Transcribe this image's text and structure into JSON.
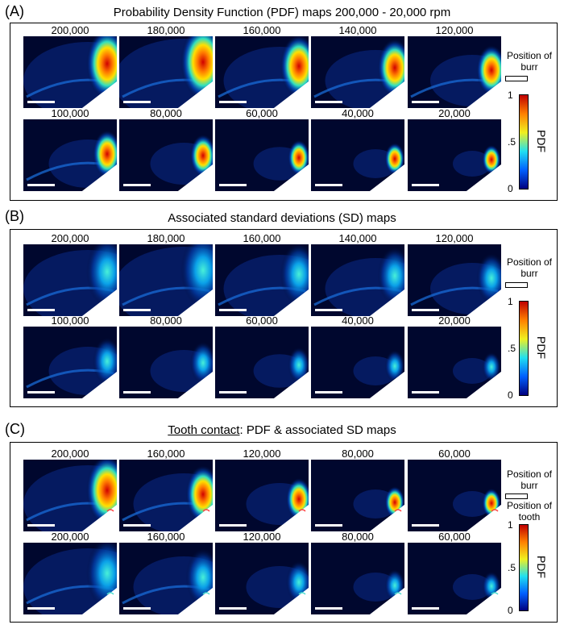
{
  "panels": [
    {
      "label": "(A)",
      "title": "Probability Density Function (PDF) maps 200,000 - 20,000 rpm",
      "rows": [
        [
          "200,000",
          "180,000",
          "160,000",
          "140,000",
          "120,000"
        ],
        [
          "100,000",
          "80,000",
          "60,000",
          "40,000",
          "20,000"
        ]
      ],
      "side": {
        "burr": "Position of burr"
      },
      "colorbar": {
        "name": "PDF",
        "ticks": [
          "1",
          ".5",
          "0"
        ]
      }
    },
    {
      "label": "(B)",
      "title": "Associated standard deviations (SD) maps",
      "rows": [
        [
          "200,000",
          "180,000",
          "160,000",
          "140,000",
          "120,000"
        ],
        [
          "100,000",
          "80,000",
          "60,000",
          "40,000",
          "20,000"
        ]
      ],
      "side": {
        "burr": "Position of burr"
      },
      "colorbar": {
        "name": "PDF",
        "ticks": [
          "1",
          ".5",
          "0"
        ]
      }
    },
    {
      "label": "(C)",
      "title_underlined": "Tooth contact",
      "title_rest": ": PDF & associated SD maps",
      "rows": [
        [
          "200,000",
          "160,000",
          "120,000",
          "80,000",
          "60,000"
        ],
        [
          "200,000",
          "160,000",
          "120,000",
          "80,000",
          "60,000"
        ]
      ],
      "side": {
        "burr": "Position of burr",
        "tooth": "Position of tooth"
      },
      "colorbar": {
        "name": "PDF",
        "ticks": [
          "1",
          ".5",
          "0"
        ]
      }
    }
  ],
  "colors": {
    "map_background": "#00072e",
    "jet_low": "#00008f",
    "jet_high": "#c00000"
  }
}
